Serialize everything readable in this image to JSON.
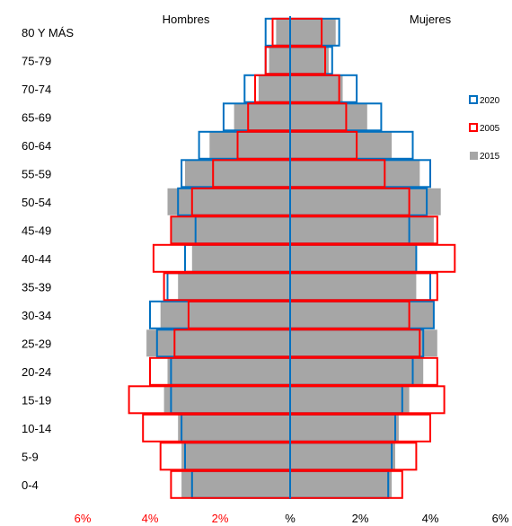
{
  "chart_data": {
    "type": "bar",
    "subtype": "population-pyramid",
    "left_label": "Hombres",
    "right_label": "Mujeres",
    "categories": [
      "80 Y MÁS",
      "75-79",
      "70-74",
      "65-69",
      "60-64",
      "55-59",
      "50-54",
      "45-49",
      "40-44",
      "35-39",
      "30-34",
      "25-29",
      "20-24",
      "15-19",
      "10-14",
      "5-9",
      "0-4"
    ],
    "x_ticks": [
      "6%",
      "4%",
      "2%",
      "%",
      "2%",
      "4%",
      "6%"
    ],
    "x_tick_values": [
      -6,
      -4,
      -2,
      0,
      2,
      4,
      6
    ],
    "xlim": [
      -6,
      6
    ],
    "legend_position": "right",
    "series": [
      {
        "name": "2015",
        "color": "#a6a6a6",
        "style": "filled",
        "men": [
          0.4,
          0.6,
          0.9,
          1.6,
          2.3,
          3.0,
          3.5,
          3.4,
          2.8,
          3.2,
          3.7,
          4.1,
          3.5,
          3.6,
          3.2,
          3.1,
          3.1
        ],
        "women": [
          1.3,
          1.1,
          1.5,
          2.2,
          2.9,
          3.7,
          4.3,
          4.1,
          3.6,
          3.6,
          4.1,
          4.2,
          3.8,
          3.4,
          3.1,
          3.0,
          2.9
        ]
      },
      {
        "name": "2005",
        "color": "#ff0000",
        "style": "outline",
        "men": [
          0.5,
          0.7,
          1.0,
          1.2,
          1.5,
          2.2,
          2.8,
          3.4,
          3.9,
          3.6,
          2.9,
          3.3,
          4.0,
          4.6,
          4.2,
          3.7,
          3.4
        ],
        "women": [
          0.9,
          1.0,
          1.4,
          1.6,
          1.9,
          2.7,
          3.4,
          4.2,
          4.7,
          4.2,
          3.4,
          3.7,
          4.2,
          4.4,
          4.0,
          3.6,
          3.2
        ]
      },
      {
        "name": "2020",
        "color": "#0070c0",
        "style": "outline",
        "men": [
          0.7,
          0.7,
          1.3,
          1.9,
          2.6,
          3.1,
          3.2,
          2.7,
          3.0,
          3.5,
          4.0,
          3.8,
          3.4,
          3.4,
          3.1,
          3.0,
          2.8
        ],
        "women": [
          1.4,
          1.2,
          1.9,
          2.6,
          3.5,
          4.0,
          3.9,
          3.4,
          3.6,
          4.0,
          4.1,
          3.8,
          3.5,
          3.2,
          3.0,
          2.9,
          2.8
        ]
      }
    ]
  }
}
